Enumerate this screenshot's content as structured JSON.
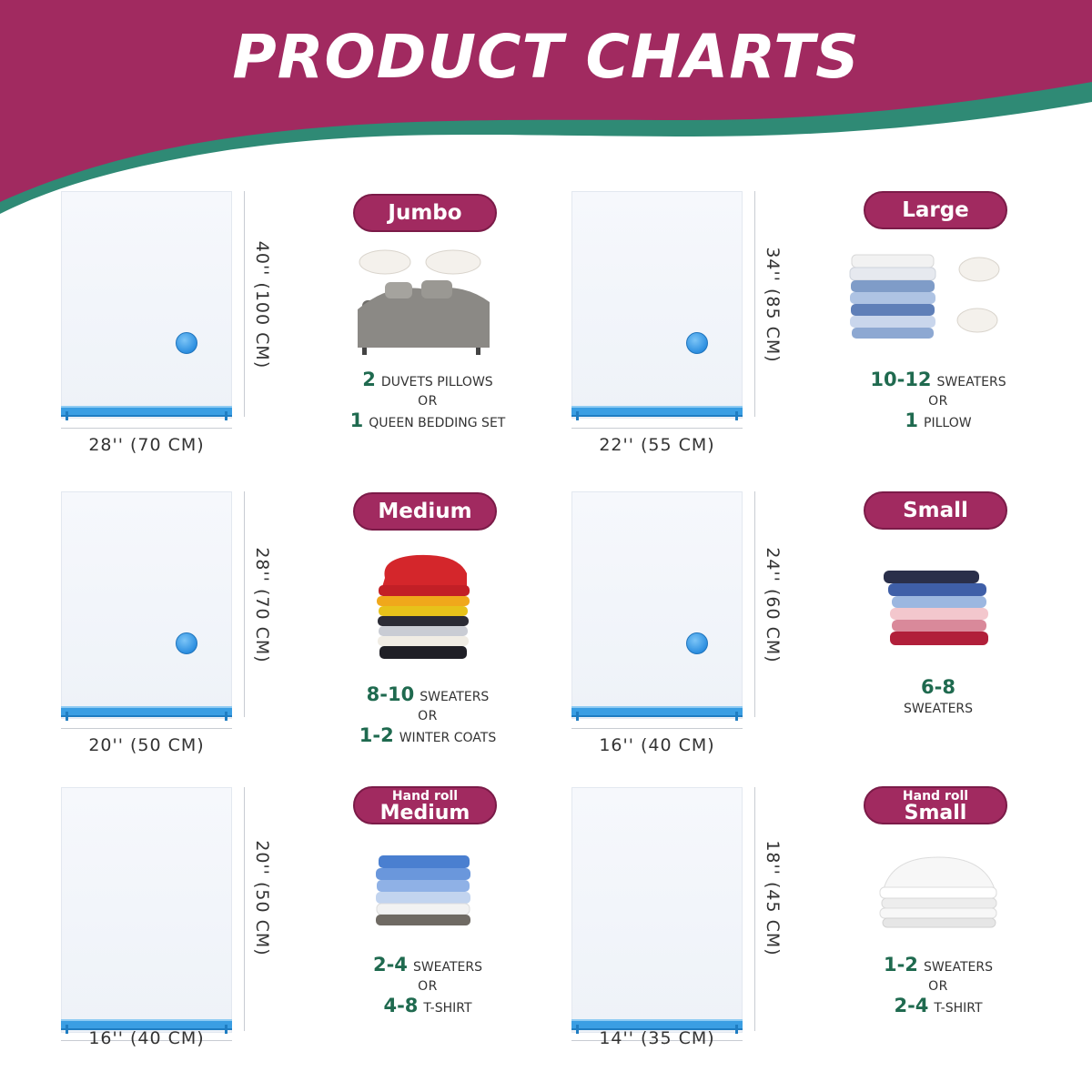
{
  "title": "PRODUCT CHARTS",
  "colors": {
    "banner_magenta": "#a12a60",
    "banner_teal": "#2f8a75",
    "number_green": "#1f6a4f",
    "valve_blue": "#2d8fe0"
  },
  "products": [
    {
      "label": "Jumbo",
      "width": "28'' (70 CM)",
      "height": "40'' (100 CM)",
      "line1_num": "2",
      "line1_text": "DUVETS PILLOWS",
      "or": "OR",
      "line2_num": "1",
      "line2_text": "QUEEN BEDDING SET",
      "illustration": "bed-and-pillows"
    },
    {
      "label": "Large",
      "width": "22'' (55 CM)",
      "height": "34'' (85 CM)",
      "line1_num": "10-12",
      "line1_text": "SWEATERS",
      "or": "OR",
      "line2_num": "1",
      "line2_text": "PILLOW",
      "illustration": "shirt-stack-and-pillows"
    },
    {
      "label": "Medium",
      "width": "20'' (50 CM)",
      "height": "28'' (70 CM)",
      "line1_num": "8-10",
      "line1_text": "SWEATERS",
      "or": "OR",
      "line2_num": "1-2",
      "line2_text": "WINTER COATS",
      "illustration": "sweater-stack"
    },
    {
      "label": "Small",
      "width": "16'' (40 CM)",
      "height": "24'' (60 CM)",
      "line1_num": "6-8",
      "line1_text": "SWEATERS",
      "illustration": "folded-sweaters"
    },
    {
      "label_top": "Hand roll",
      "label": "Medium",
      "width": "16'' (40 CM)",
      "height": "20'' (50 CM)",
      "line1_num": "2-4",
      "line1_text": "SWEATERS",
      "or": "OR",
      "line2_num": "4-8",
      "line2_text": "T-SHIRT",
      "illustration": "shirt-stack-blue"
    },
    {
      "label_top": "Hand roll",
      "label": "Small",
      "width": "14'' (35 CM)",
      "height": "18'' (45 CM)",
      "line1_num": "1-2",
      "line1_text": "SWEATERS",
      "or": "OR",
      "line2_num": "2-4",
      "line2_text": "T-SHIRT",
      "illustration": "white-shirt-stack"
    }
  ]
}
